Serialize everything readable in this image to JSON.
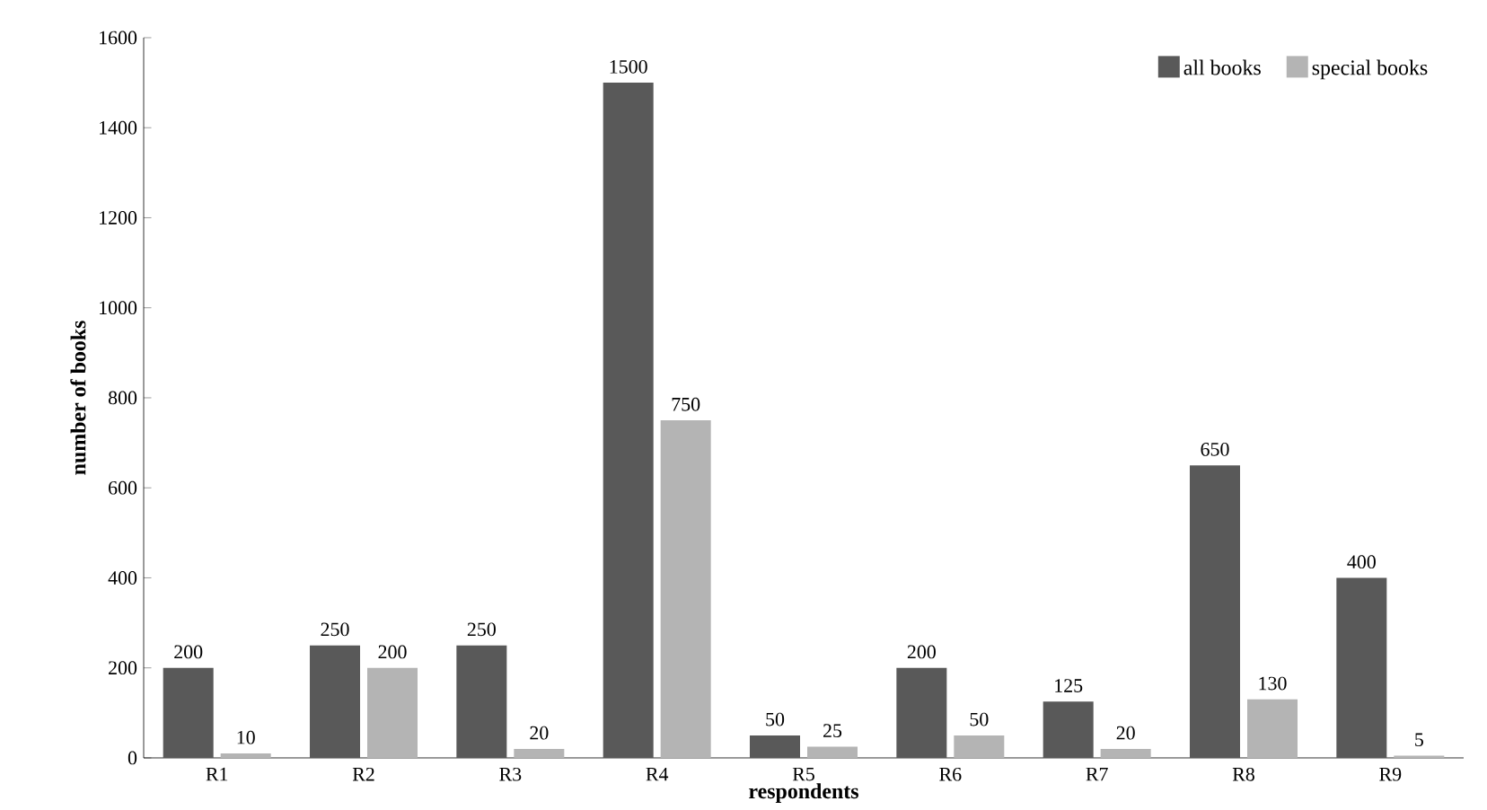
{
  "chart_data": {
    "type": "bar",
    "xlabel": "respondents",
    "ylabel": "number of books",
    "categories": [
      "R1",
      "R2",
      "R3",
      "R4",
      "R5",
      "R6",
      "R7",
      "R8",
      "R9"
    ],
    "series": [
      {
        "name": "all books",
        "color": "#595959",
        "values": [
          200,
          250,
          250,
          1500,
          50,
          200,
          125,
          650,
          400
        ]
      },
      {
        "name": "special books",
        "color": "#b4b4b4",
        "values": [
          10,
          200,
          20,
          750,
          25,
          50,
          20,
          130,
          5
        ]
      }
    ],
    "ylim": [
      0,
      1600
    ],
    "yticks": [
      0,
      200,
      400,
      600,
      800,
      1000,
      1200,
      1400,
      1600
    ],
    "data_labels": true,
    "legend": "top right",
    "grid": false
  }
}
